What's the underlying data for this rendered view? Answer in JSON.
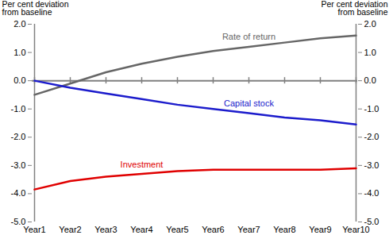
{
  "chart_data": {
    "type": "line",
    "y_label": "Per cent deviation\nfrom baseline",
    "y2_label": "Per cent deviation\nfrom baseline",
    "categories": [
      "Year1",
      "Year2",
      "Year3",
      "Year4",
      "Year5",
      "Year6",
      "Year7",
      "Year8",
      "Year9",
      "Year10"
    ],
    "series": [
      {
        "name": "Rate of return",
        "color": "#666666",
        "values": [
          -0.5,
          -0.1,
          0.3,
          0.6,
          0.85,
          1.05,
          1.2,
          1.35,
          1.5,
          1.6
        ]
      },
      {
        "name": "Capital stock",
        "color": "#1c1ccc",
        "values": [
          0.0,
          -0.25,
          -0.45,
          -0.65,
          -0.85,
          -1.0,
          -1.15,
          -1.3,
          -1.4,
          -1.55
        ]
      },
      {
        "name": "Investment",
        "color": "#e00000",
        "values": [
          -3.85,
          -3.55,
          -3.4,
          -3.3,
          -3.2,
          -3.15,
          -3.15,
          -3.15,
          -3.15,
          -3.1
        ]
      }
    ],
    "ylim": [
      -5,
      2
    ],
    "yticks": [
      {
        "value": -5,
        "label": "-5.0"
      },
      {
        "value": -4,
        "label": "-4.0"
      },
      {
        "value": -3,
        "label": "-3.0"
      },
      {
        "value": -2,
        "label": "-2.0"
      },
      {
        "value": -1,
        "label": "-1.0"
      },
      {
        "value": 0,
        "label": "0.0"
      },
      {
        "value": 1,
        "label": "1.0"
      },
      {
        "value": 2,
        "label": "2.0"
      }
    ],
    "grid": false
  }
}
